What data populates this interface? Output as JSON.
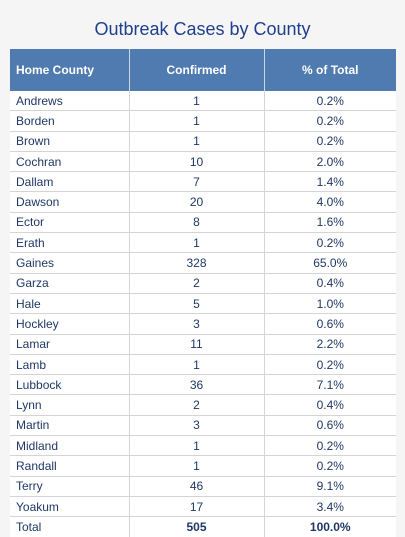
{
  "title": "Outbreak Cases by County",
  "columns": [
    "Home County",
    "Confirmed",
    "% of Total"
  ],
  "rows": [
    {
      "county": "Andrews",
      "confirmed": "1",
      "pct": "0.2%"
    },
    {
      "county": "Borden",
      "confirmed": "1",
      "pct": "0.2%"
    },
    {
      "county": "Brown",
      "confirmed": "1",
      "pct": "0.2%"
    },
    {
      "county": "Cochran",
      "confirmed": "10",
      "pct": "2.0%"
    },
    {
      "county": "Dallam",
      "confirmed": "7",
      "pct": "1.4%"
    },
    {
      "county": "Dawson",
      "confirmed": "20",
      "pct": "4.0%"
    },
    {
      "county": "Ector",
      "confirmed": "8",
      "pct": "1.6%"
    },
    {
      "county": "Erath",
      "confirmed": "1",
      "pct": "0.2%"
    },
    {
      "county": "Gaines",
      "confirmed": "328",
      "pct": "65.0%"
    },
    {
      "county": "Garza",
      "confirmed": "2",
      "pct": "0.4%"
    },
    {
      "county": "Hale",
      "confirmed": "5",
      "pct": "1.0%"
    },
    {
      "county": "Hockley",
      "confirmed": "3",
      "pct": "0.6%"
    },
    {
      "county": "Lamar",
      "confirmed": "11",
      "pct": "2.2%"
    },
    {
      "county": "Lamb",
      "confirmed": "1",
      "pct": "0.2%"
    },
    {
      "county": "Lubbock",
      "confirmed": "36",
      "pct": "7.1%"
    },
    {
      "county": "Lynn",
      "confirmed": "2",
      "pct": "0.4%"
    },
    {
      "county": "Martin",
      "confirmed": "3",
      "pct": "0.6%"
    },
    {
      "county": "Midland",
      "confirmed": "1",
      "pct": "0.2%"
    },
    {
      "county": "Randall",
      "confirmed": "1",
      "pct": "0.2%"
    },
    {
      "county": "Terry",
      "confirmed": "46",
      "pct": "9.1%"
    },
    {
      "county": "Yoakum",
      "confirmed": "17",
      "pct": "3.4%"
    }
  ],
  "total": {
    "label": "Total",
    "confirmed": "505",
    "pct": "100.0%"
  },
  "colors": {
    "header_bg": "#4f7bb0",
    "title": "#1f3f8c",
    "text": "#1f3864"
  }
}
